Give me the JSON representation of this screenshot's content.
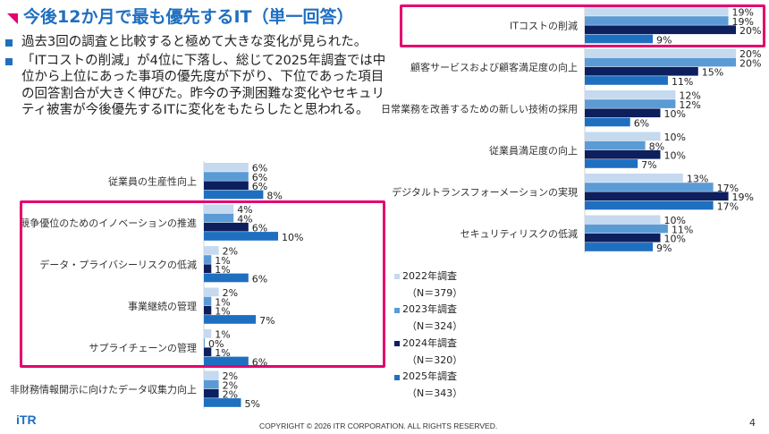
{
  "title": "今後12か月で最も優先するIT（単一回答）",
  "bullets": [
    "過去3回の調査と比較すると極めて大きな変化が見られた。",
    "「ITコストの削減」が4位に下落し、総じて2025年調査では中位から上位にあった事項の優先度が下がり、下位であった項目の回答割合が大きく伸びた。昨今の予測困難な変化やセキュリティ被害が今後優先するITに変化をもたらしたと思われる。"
  ],
  "footer": {
    "logo": "iTR",
    "copyright": "COPYRIGHT © 2026 ITR CORPORATION. ALL RIGHTS RESERVED.",
    "page": "4"
  },
  "colors": {
    "accent": "#e4006e",
    "title": "#1f6fc1"
  },
  "chart_data": {
    "type": "bar",
    "orientation": "horizontal",
    "value_suffix": "%",
    "legend_position": "bottom-center",
    "series": [
      {
        "name": "2022年調査",
        "n": "（N＝379）",
        "color": "#c5d9ef"
      },
      {
        "name": "2023年調査",
        "n": "（N＝324）",
        "color": "#5b9bd5"
      },
      {
        "name": "2024年調査",
        "n": "（N＝320）",
        "color": "#0d1f5c"
      },
      {
        "name": "2025年調査",
        "n": "（N＝343）",
        "color": "#1f6fc1"
      }
    ],
    "panels": [
      {
        "categories": [
          "ITコストの削減",
          "顧客サービスおよび顧客満足度の向上",
          "日常業務を改善するための新しい技術の採用",
          "従業員満足度の向上",
          "デジタルトランスフォーメーションの実現",
          "セキュリティリスクの低減"
        ],
        "values": [
          [
            19,
            19,
            20,
            9
          ],
          [
            20,
            20,
            15,
            11
          ],
          [
            12,
            12,
            10,
            6
          ],
          [
            10,
            8,
            10,
            7
          ],
          [
            13,
            17,
            19,
            17
          ],
          [
            10,
            11,
            10,
            9
          ]
        ],
        "highlighted": [
          "ITコストの削減"
        ]
      },
      {
        "categories": [
          "従業員の生産性向上",
          "競争優位のためのイノベーションの推進",
          "データ・プライバシーリスクの低減",
          "事業継続の管理",
          "サプライチェーンの管理",
          "非財務情報開示に向けたデータ収集力向上"
        ],
        "values": [
          [
            6,
            6,
            6,
            8
          ],
          [
            4,
            4,
            6,
            10
          ],
          [
            2,
            1,
            1,
            6
          ],
          [
            2,
            1,
            1,
            7
          ],
          [
            1,
            0,
            1,
            6
          ],
          [
            2,
            2,
            2,
            5
          ]
        ],
        "highlighted": [
          "競争優位のためのイノベーションの推進",
          "データ・プライバシーリスクの低減",
          "事業継続の管理",
          "サプライチェーンの管理"
        ]
      }
    ]
  }
}
